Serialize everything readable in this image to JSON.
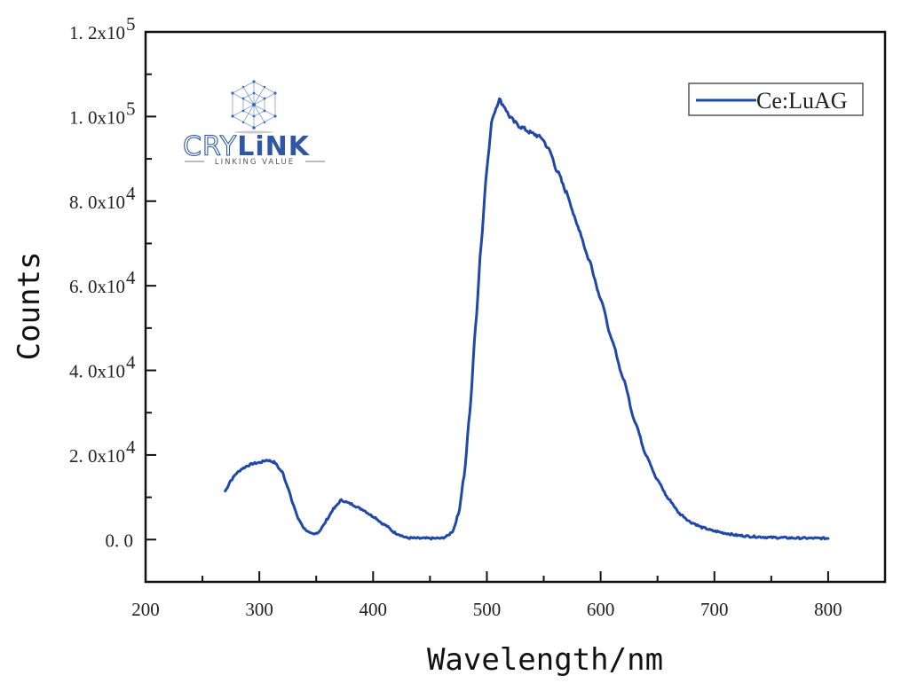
{
  "chart_data": {
    "type": "line",
    "title": "",
    "xlabel": "Wavelength/nm",
    "ylabel": "Counts",
    "xlim": [
      200,
      850
    ],
    "ylim": [
      -10000,
      120000
    ],
    "grid": false,
    "legend_position": "top-right",
    "x_ticks": [
      200,
      300,
      400,
      500,
      600,
      700,
      800
    ],
    "x_tick_labels": [
      "200",
      "300",
      "400",
      "500",
      "600",
      "700",
      "800"
    ],
    "y_ticks": [
      0,
      20000,
      40000,
      60000,
      80000,
      100000,
      120000
    ],
    "y_tick_labels": [
      {
        "mantissa": "0. 0",
        "exp": ""
      },
      {
        "mantissa": "2. 0x10",
        "exp": "4"
      },
      {
        "mantissa": "4. 0x10",
        "exp": "4"
      },
      {
        "mantissa": "6. 0x10",
        "exp": "4"
      },
      {
        "mantissa": "8. 0x10",
        "exp": "4"
      },
      {
        "mantissa": "1. 0x10",
        "exp": "5"
      },
      {
        "mantissa": "1. 2x10",
        "exp": "5"
      }
    ],
    "series": [
      {
        "name": "Ce:LuAG",
        "color": "#1f48a8",
        "x": [
          270,
          275,
          280,
          285,
          290,
          295,
          300,
          307,
          313,
          320,
          325,
          330,
          335,
          340,
          345,
          348,
          352,
          356,
          360,
          365,
          372,
          380,
          390,
          400,
          410,
          420,
          430,
          440,
          450,
          460,
          465,
          470,
          475,
          480,
          485,
          490,
          495,
          500,
          505,
          511,
          515,
          520,
          525,
          530,
          540,
          548,
          555,
          562,
          570,
          580,
          590,
          600,
          610,
          620,
          630,
          640,
          650,
          660,
          670,
          680,
          690,
          700,
          710,
          720,
          735,
          750,
          775,
          800
        ],
        "y": [
          11500,
          14000,
          15700,
          16800,
          17500,
          18000,
          18200,
          18800,
          18300,
          16000,
          12500,
          8000,
          4500,
          2500,
          1400,
          1200,
          1800,
          3200,
          5000,
          7200,
          9300,
          8500,
          7200,
          5500,
          3500,
          1500,
          400,
          300,
          300,
          300,
          800,
          2000,
          6000,
          15000,
          30000,
          50000,
          70000,
          88000,
          100000,
          104000,
          102500,
          100000,
          98500,
          97500,
          96000,
          95000,
          92000,
          87000,
          82000,
          74000,
          66000,
          57000,
          47000,
          38000,
          28000,
          20000,
          14000,
          9500,
          6000,
          4000,
          2800,
          2000,
          1500,
          1000,
          700,
          500,
          350,
          300
        ]
      }
    ]
  },
  "legend": {
    "label": "Ce:LuAG",
    "line_color": "#1f48a8"
  },
  "logo": {
    "brand_light": "CRY",
    "brand_bold": "LiNK",
    "tagline": "LINKING VALUE",
    "color": "#2f57a6"
  }
}
